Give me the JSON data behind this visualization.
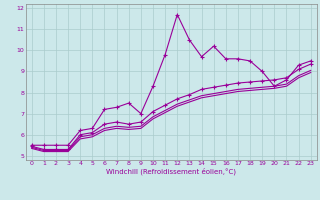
{
  "background_color": "#cce8ea",
  "grid_color": "#aacccc",
  "line_color": "#990099",
  "xlabel": "Windchill (Refroidissement éolien,°C)",
  "xlim": [
    -0.5,
    23.5
  ],
  "ylim": [
    4.8,
    12.2
  ],
  "xticks": [
    0,
    1,
    2,
    3,
    4,
    5,
    6,
    7,
    8,
    9,
    10,
    11,
    12,
    13,
    14,
    15,
    16,
    17,
    18,
    19,
    20,
    21,
    22,
    23
  ],
  "yticks": [
    5,
    6,
    7,
    8,
    9,
    10,
    11,
    12
  ],
  "series": [
    {
      "x": [
        0,
        1,
        2,
        3,
        4,
        5,
        6,
        7,
        8,
        9,
        10,
        11,
        12,
        13,
        14,
        15,
        16,
        17,
        18,
        19,
        20,
        21,
        22,
        23
      ],
      "y": [
        5.5,
        5.5,
        5.5,
        5.5,
        6.2,
        6.3,
        7.2,
        7.3,
        7.5,
        7.0,
        8.3,
        9.8,
        11.7,
        10.5,
        9.7,
        10.2,
        9.6,
        9.6,
        9.5,
        9.0,
        8.3,
        8.6,
        9.3,
        9.5
      ],
      "marker": "+"
    },
    {
      "x": [
        0,
        1,
        2,
        3,
        4,
        5,
        6,
        7,
        8,
        9,
        10,
        11,
        12,
        13,
        14,
        15,
        16,
        17,
        18,
        19,
        20,
        21,
        22,
        23
      ],
      "y": [
        5.45,
        5.3,
        5.3,
        5.3,
        6.0,
        6.1,
        6.5,
        6.6,
        6.5,
        6.6,
        7.1,
        7.4,
        7.7,
        7.9,
        8.15,
        8.25,
        8.35,
        8.45,
        8.5,
        8.55,
        8.6,
        8.7,
        9.1,
        9.35
      ],
      "marker": "+"
    },
    {
      "x": [
        0,
        1,
        2,
        3,
        4,
        5,
        6,
        7,
        8,
        9,
        10,
        11,
        12,
        13,
        14,
        15,
        16,
        17,
        18,
        19,
        20,
        21,
        22,
        23
      ],
      "y": [
        5.4,
        5.25,
        5.25,
        5.25,
        5.9,
        6.0,
        6.3,
        6.4,
        6.35,
        6.4,
        6.85,
        7.15,
        7.45,
        7.65,
        7.85,
        7.95,
        8.05,
        8.15,
        8.2,
        8.25,
        8.3,
        8.4,
        8.8,
        9.05
      ],
      "marker": null
    },
    {
      "x": [
        0,
        1,
        2,
        3,
        4,
        5,
        6,
        7,
        8,
        9,
        10,
        11,
        12,
        13,
        14,
        15,
        16,
        17,
        18,
        19,
        20,
        21,
        22,
        23
      ],
      "y": [
        5.35,
        5.2,
        5.2,
        5.2,
        5.8,
        5.9,
        6.2,
        6.3,
        6.25,
        6.3,
        6.75,
        7.05,
        7.35,
        7.55,
        7.75,
        7.85,
        7.95,
        8.05,
        8.1,
        8.15,
        8.2,
        8.3,
        8.7,
        8.95
      ],
      "marker": null
    }
  ]
}
